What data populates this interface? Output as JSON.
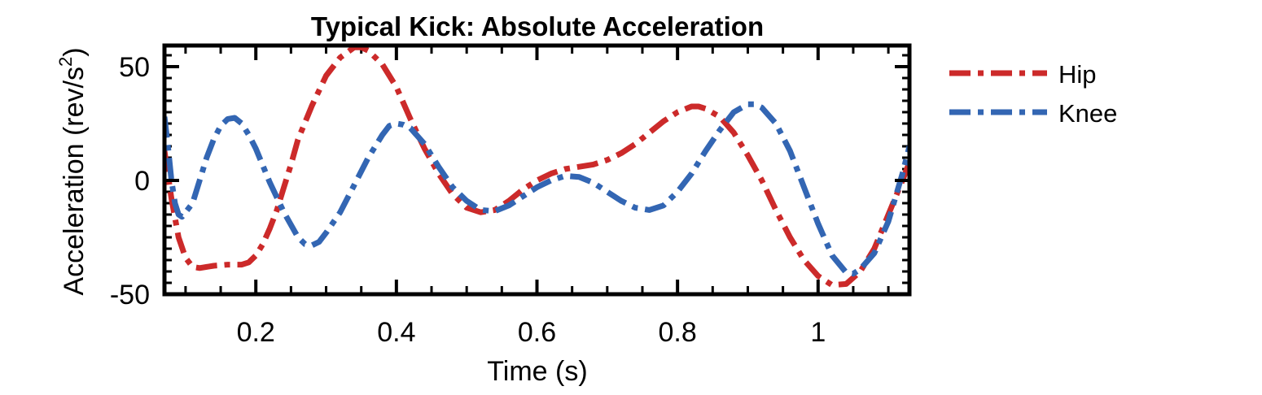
{
  "chart_data": {
    "type": "line",
    "title": "Typical Kick: Absolute Acceleration",
    "xlabel": "Time (s)",
    "ylabel": "Acceleration (rev/s",
    "ylabel_sup": "2",
    "ylabel_close": ")",
    "xlim": [
      0.07,
      1.13
    ],
    "ylim": [
      -50,
      60
    ],
    "xticks": [
      0.2,
      0.4,
      0.6,
      0.8,
      1.0
    ],
    "xtick_labels": [
      "0.2",
      "0.4",
      "0.6",
      "0.8",
      "1"
    ],
    "yticks": [
      -50,
      0,
      50
    ],
    "ytick_labels": [
      "-50",
      "0",
      "50"
    ],
    "grid": false,
    "legend_position": "outside-right",
    "series": [
      {
        "name": "Hip",
        "color": "#cc2a2a",
        "points": [
          [
            0.07,
            13
          ],
          [
            0.08,
            -8
          ],
          [
            0.09,
            -25
          ],
          [
            0.1,
            -34
          ],
          [
            0.11,
            -38
          ],
          [
            0.12,
            -38.5
          ],
          [
            0.14,
            -37.5
          ],
          [
            0.16,
            -37
          ],
          [
            0.18,
            -37
          ],
          [
            0.19,
            -36
          ],
          [
            0.2,
            -33
          ],
          [
            0.21,
            -28
          ],
          [
            0.22,
            -21
          ],
          [
            0.23,
            -13
          ],
          [
            0.24,
            -3
          ],
          [
            0.25,
            7
          ],
          [
            0.26,
            18
          ],
          [
            0.28,
            33
          ],
          [
            0.3,
            46
          ],
          [
            0.32,
            54
          ],
          [
            0.34,
            58.5
          ],
          [
            0.35,
            58.5
          ],
          [
            0.36,
            57
          ],
          [
            0.38,
            51
          ],
          [
            0.4,
            41
          ],
          [
            0.42,
            27
          ],
          [
            0.44,
            14
          ],
          [
            0.46,
            3
          ],
          [
            0.48,
            -6
          ],
          [
            0.5,
            -12
          ],
          [
            0.52,
            -14
          ],
          [
            0.54,
            -13
          ],
          [
            0.56,
            -9
          ],
          [
            0.58,
            -4
          ],
          [
            0.6,
            0
          ],
          [
            0.62,
            3
          ],
          [
            0.64,
            5
          ],
          [
            0.66,
            6
          ],
          [
            0.68,
            7
          ],
          [
            0.7,
            9
          ],
          [
            0.72,
            12
          ],
          [
            0.74,
            16
          ],
          [
            0.76,
            21
          ],
          [
            0.78,
            26
          ],
          [
            0.8,
            30
          ],
          [
            0.82,
            32.5
          ],
          [
            0.83,
            32.5
          ],
          [
            0.84,
            31.5
          ],
          [
            0.86,
            28
          ],
          [
            0.88,
            21
          ],
          [
            0.9,
            11
          ],
          [
            0.92,
            0
          ],
          [
            0.94,
            -13
          ],
          [
            0.96,
            -25
          ],
          [
            0.98,
            -35
          ],
          [
            1.0,
            -42
          ],
          [
            1.02,
            -46
          ],
          [
            1.04,
            -45.5
          ],
          [
            1.06,
            -40
          ],
          [
            1.08,
            -30
          ],
          [
            1.1,
            -15
          ],
          [
            1.12,
            0
          ],
          [
            1.13,
            8
          ]
        ]
      },
      {
        "name": "Knee",
        "color": "#3366b3",
        "points": [
          [
            0.07,
            28
          ],
          [
            0.075,
            15
          ],
          [
            0.08,
            0
          ],
          [
            0.085,
            -10
          ],
          [
            0.09,
            -15
          ],
          [
            0.095,
            -16
          ],
          [
            0.1,
            -14
          ],
          [
            0.11,
            -10
          ],
          [
            0.12,
            0
          ],
          [
            0.13,
            10
          ],
          [
            0.14,
            18
          ],
          [
            0.15,
            24
          ],
          [
            0.16,
            27
          ],
          [
            0.17,
            27.5
          ],
          [
            0.18,
            25
          ],
          [
            0.19,
            20
          ],
          [
            0.2,
            14
          ],
          [
            0.22,
            -1
          ],
          [
            0.24,
            -14
          ],
          [
            0.26,
            -25
          ],
          [
            0.27,
            -28
          ],
          [
            0.28,
            -28.5
          ],
          [
            0.29,
            -27
          ],
          [
            0.3,
            -23
          ],
          [
            0.32,
            -14
          ],
          [
            0.34,
            -2
          ],
          [
            0.36,
            10
          ],
          [
            0.38,
            20
          ],
          [
            0.39,
            24
          ],
          [
            0.4,
            25
          ],
          [
            0.41,
            24.5
          ],
          [
            0.42,
            23
          ],
          [
            0.44,
            16
          ],
          [
            0.46,
            6
          ],
          [
            0.48,
            -3
          ],
          [
            0.5,
            -9
          ],
          [
            0.52,
            -13
          ],
          [
            0.54,
            -13.5
          ],
          [
            0.56,
            -11
          ],
          [
            0.58,
            -7
          ],
          [
            0.6,
            -3
          ],
          [
            0.62,
            0
          ],
          [
            0.64,
            2
          ],
          [
            0.66,
            1.5
          ],
          [
            0.68,
            -1
          ],
          [
            0.7,
            -5
          ],
          [
            0.72,
            -9
          ],
          [
            0.74,
            -12
          ],
          [
            0.76,
            -13
          ],
          [
            0.78,
            -11
          ],
          [
            0.8,
            -5
          ],
          [
            0.82,
            3
          ],
          [
            0.84,
            13
          ],
          [
            0.86,
            22
          ],
          [
            0.88,
            30
          ],
          [
            0.9,
            33.5
          ],
          [
            0.91,
            33.5
          ],
          [
            0.92,
            32
          ],
          [
            0.94,
            25
          ],
          [
            0.96,
            13
          ],
          [
            0.98,
            -3
          ],
          [
            1.0,
            -19
          ],
          [
            1.02,
            -33
          ],
          [
            1.04,
            -40.5
          ],
          [
            1.05,
            -41
          ],
          [
            1.06,
            -39
          ],
          [
            1.08,
            -32
          ],
          [
            1.1,
            -18
          ],
          [
            1.12,
            3
          ],
          [
            1.13,
            15
          ]
        ]
      }
    ]
  }
}
